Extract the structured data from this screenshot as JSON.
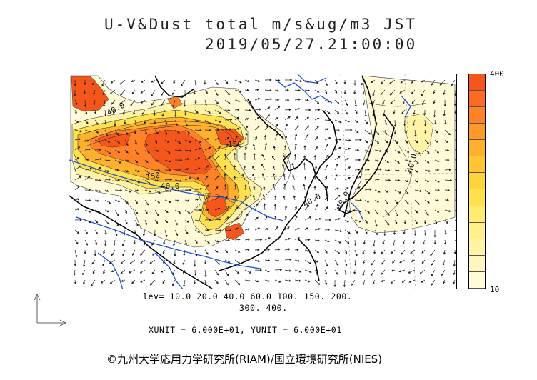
{
  "title": {
    "line1": "U-V&Dust total m/s&ug/m3 JST",
    "line2": "2019/05/27.21:00:00"
  },
  "colorbar": {
    "max_label": "400",
    "min_label": "10",
    "colors": [
      "#fffbd9",
      "#fff6bf",
      "#fff3a8",
      "#fff08c",
      "#ffeb70",
      "#ffe14f",
      "#ffd43b",
      "#ffc533",
      "#ffb12e",
      "#ff9a2a",
      "#ff8226",
      "#ff6a22",
      "#f5561c"
    ]
  },
  "contour_labels": {
    "lev_line1": "lev= 10.0 20.0 40.0 60.0 100. 150. 200.",
    "lev_line2": "300. 400."
  },
  "map_labels": [
    "40.0",
    "150",
    "40.0",
    "150",
    "40.0",
    "40.0",
    "40.0"
  ],
  "units": "XUNIT = 6.000E+01, YUNIT = 6.000E+01",
  "copyright": "©九州大学応用力学研究所(RIAM)/国立環境研究所(NIES)",
  "icons": {
    "axis_legend": "xy-unit-vector-icon"
  }
}
